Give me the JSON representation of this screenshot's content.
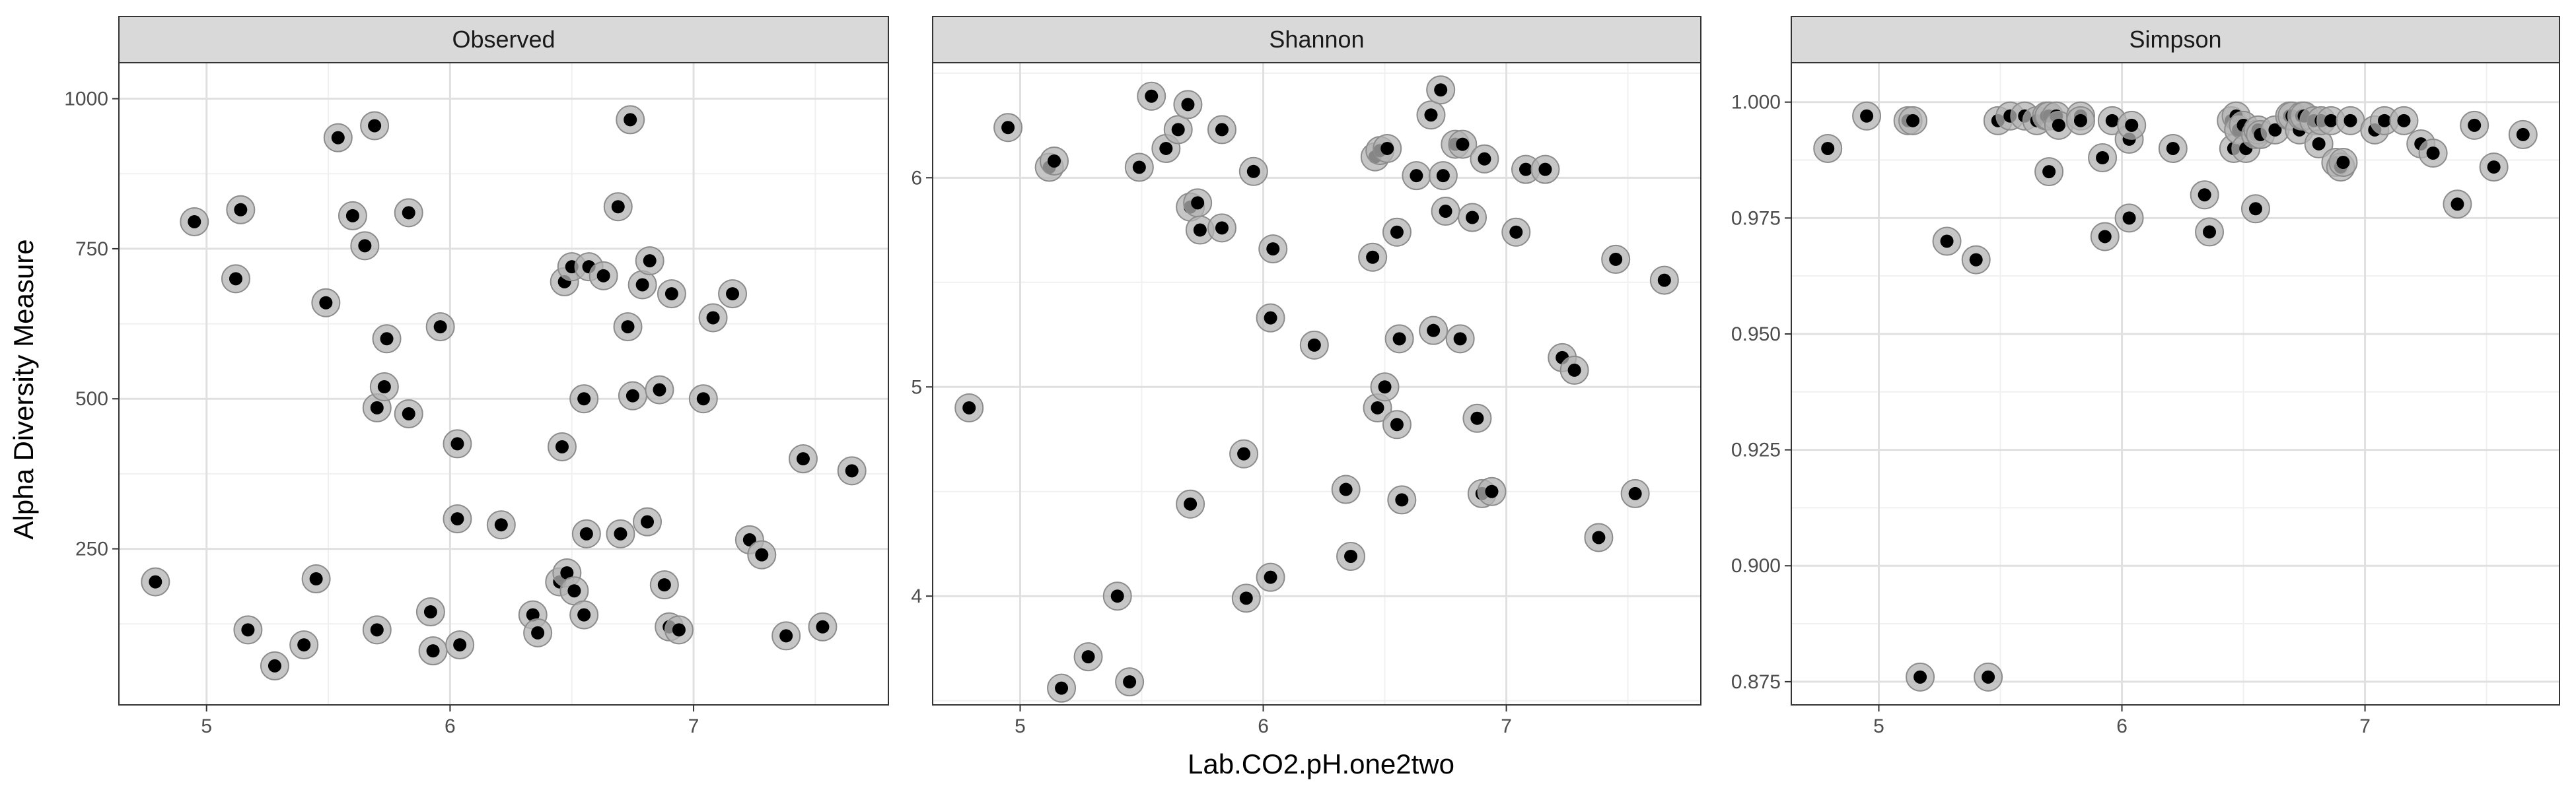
{
  "chart_data": {
    "type": "scatter",
    "xlabel": "Lab.CO2.pH.one2two",
    "ylabel": "Alpha Diversity Measure",
    "x_ticks": [
      5,
      6,
      7
    ],
    "xlim": [
      4.64,
      7.8
    ],
    "grid": true,
    "legend": "none",
    "colors": {
      "point": "#000000",
      "halo": "#b3b3b3",
      "strip_bg": "#d9d9d9",
      "grid_major": "#e0e0e0",
      "grid_minor": "#f0f0f0",
      "border": "#333333"
    },
    "x": [
      4.79,
      4.95,
      5.12,
      5.14,
      5.17,
      5.28,
      5.4,
      5.45,
      5.49,
      5.54,
      5.6,
      5.65,
      5.69,
      5.7,
      5.7,
      5.73,
      5.74,
      5.83,
      5.83,
      5.92,
      5.93,
      5.96,
      6.03,
      6.03,
      6.04,
      6.21,
      6.34,
      6.36,
      6.45,
      6.46,
      6.47,
      6.48,
      6.5,
      6.51,
      6.55,
      6.55,
      6.56,
      6.57,
      6.63,
      6.69,
      6.7,
      6.73,
      6.74,
      6.75,
      6.79,
      6.81,
      6.82,
      6.86,
      6.88,
      6.9,
      6.91,
      6.94,
      7.04,
      7.08,
      7.16,
      7.23,
      7.28,
      7.38,
      7.45,
      7.53,
      7.65
    ],
    "facets": [
      {
        "name": "Observed",
        "ylim": [
          -10,
          1060
        ],
        "y_ticks": [
          250,
          500,
          750,
          1000
        ],
        "y_tick_labels": [
          "250",
          "500",
          "750",
          "1000"
        ],
        "y": [
          195,
          795,
          700,
          815,
          115,
          55,
          90,
          200,
          660,
          935,
          805,
          755,
          955,
          485,
          115,
          520,
          600,
          475,
          810,
          145,
          80,
          620,
          425,
          300,
          90,
          290,
          140,
          110,
          195,
          420,
          695,
          210,
          720,
          180,
          500,
          140,
          275,
          720,
          705,
          820,
          275,
          620,
          965,
          505,
          690,
          295,
          730,
          515,
          190,
          120,
          675,
          115,
          500,
          635,
          675,
          265,
          240,
          105,
          400,
          120,
          380
        ]
      },
      {
        "name": "Shannon",
        "ylim": [
          3.48,
          6.55
        ],
        "y_ticks": [
          4,
          5,
          6
        ],
        "y_tick_labels": [
          "4",
          "5",
          "6"
        ],
        "y": [
          4.9,
          6.24,
          6.05,
          6.08,
          3.56,
          3.71,
          4.0,
          3.59,
          6.05,
          6.39,
          6.14,
          6.23,
          6.35,
          4.44,
          5.86,
          5.88,
          5.75,
          5.76,
          6.23,
          4.68,
          3.99,
          6.03,
          5.33,
          4.09,
          5.66,
          5.2,
          4.51,
          4.19,
          5.62,
          6.1,
          4.9,
          6.13,
          5.0,
          6.14,
          4.82,
          5.74,
          5.23,
          4.46,
          6.01,
          6.3,
          5.27,
          6.42,
          6.01,
          5.84,
          6.16,
          5.23,
          6.16,
          5.81,
          4.85,
          4.49,
          6.09,
          4.5,
          5.74,
          6.04,
          6.04,
          5.14,
          5.08,
          4.28,
          5.61,
          4.49,
          5.51
        ]
      },
      {
        "name": "Simpson",
        "ylim": [
          0.87,
          1.0085
        ],
        "y_ticks": [
          0.875,
          0.9,
          0.925,
          0.95,
          0.975,
          1.0
        ],
        "y_tick_labels": [
          "0.875",
          "0.900",
          "0.925",
          "0.950",
          "0.975",
          "1.000"
        ],
        "y": [
          0.99,
          0.997,
          0.996,
          0.996,
          0.876,
          0.97,
          0.966,
          0.876,
          0.996,
          0.997,
          0.997,
          0.996,
          0.997,
          0.985,
          0.997,
          0.997,
          0.995,
          0.997,
          0.996,
          0.988,
          0.971,
          0.996,
          0.975,
          0.992,
          0.995,
          0.99,
          0.98,
          0.972,
          0.996,
          0.99,
          0.997,
          0.994,
          0.995,
          0.99,
          0.993,
          0.977,
          0.994,
          0.993,
          0.994,
          0.997,
          0.997,
          0.994,
          0.997,
          0.997,
          0.996,
          0.991,
          0.996,
          0.996,
          0.987,
          0.986,
          0.987,
          0.996,
          0.994,
          0.996,
          0.996,
          0.991,
          0.989,
          0.978,
          0.995,
          0.986,
          0.993
        ]
      }
    ]
  }
}
